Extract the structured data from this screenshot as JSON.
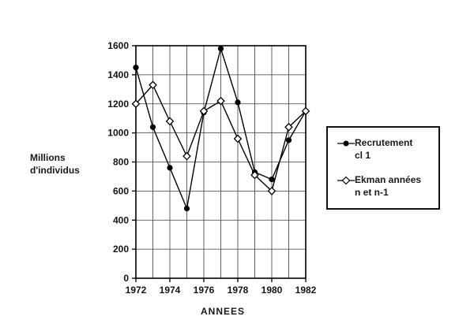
{
  "figure": {
    "y_axis_label_line1": "Millions",
    "y_axis_label_line2": "d'individus",
    "x_axis_label": "ANNEES"
  },
  "legend": {
    "items": [
      {
        "marker": "filled-circle",
        "label_line1": "Recrutement",
        "label_line2": "cl 1"
      },
      {
        "marker": "open-diamond",
        "label_line1": "Ekman années",
        "label_line2": "n et n-1"
      }
    ]
  },
  "chart_data": {
    "type": "line",
    "x": [
      1972,
      1973,
      1974,
      1975,
      1976,
      1977,
      1978,
      1979,
      1980,
      1981,
      1982
    ],
    "series": [
      {
        "name": "Recrutement cl 1",
        "marker": "filled-circle",
        "values": [
          1450,
          1040,
          760,
          480,
          1140,
          1580,
          1210,
          730,
          680,
          950,
          1150
        ]
      },
      {
        "name": "Ekman années n et n-1",
        "marker": "open-diamond",
        "values": [
          1200,
          1330,
          1080,
          840,
          1150,
          1220,
          960,
          710,
          600,
          1040,
          1150
        ]
      }
    ],
    "ylabel": "Millions d'individus",
    "xlabel": "ANNEES",
    "ylim": [
      0,
      1600
    ],
    "ytick_step": 200,
    "xticks_labeled": [
      1972,
      1974,
      1976,
      1978,
      1980,
      1982
    ],
    "grid": true,
    "legend_position": "right",
    "line_color": "#000000",
    "grid_color": "#3c3c3c"
  }
}
